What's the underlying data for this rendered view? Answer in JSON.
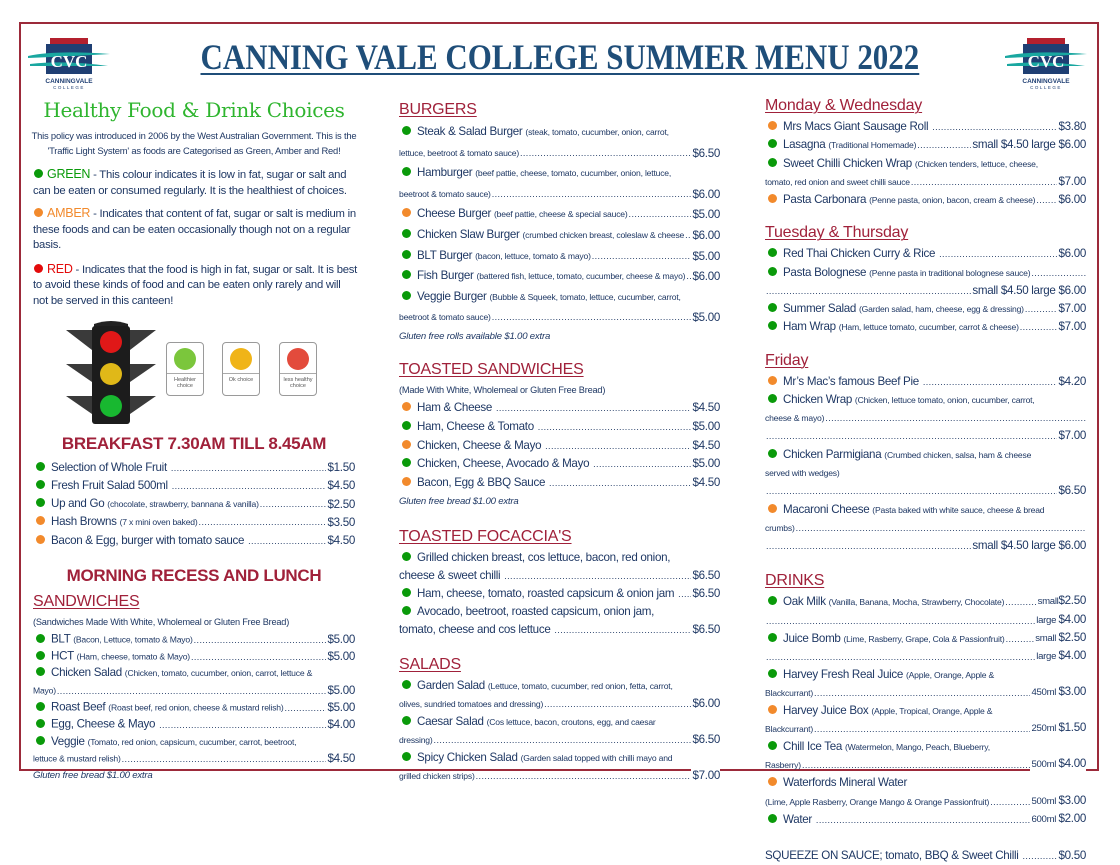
{
  "header": {
    "title": "CANNING VALE COLLEGE SUMMER MENU 2022",
    "logo_text": "CVC",
    "logo_subtext": "CANNINGVALE COLLEGE"
  },
  "colors": {
    "green": "#0a9a0a",
    "amber": "#f28a2c",
    "red": "#e30b0b",
    "heading": "#a0213a",
    "text": "#1f3864",
    "title": "#1f4e79",
    "border": "#9c2a3a"
  },
  "intro": {
    "heading": "Healthy Food & Drink Choices",
    "policy": "This policy was introduced in 2006 by the West Australian Government. This is the 'Traffic Light System' as foods are Categorised as Green, Amber and Red!",
    "legend": {
      "green": {
        "label": "GREEN",
        "text": " - This colour indicates it is low in fat, sugar or salt and can be eaten or consumed regularly. It is the healthiest of choices."
      },
      "amber": {
        "label": "AMBER",
        "text": " - Indicates that content of fat, sugar or salt is medium in these foods and can be eaten occasionally though not on a regular basis."
      },
      "red": {
        "label": "RED",
        "text": " - Indicates that the food is high in fat, sugar or salt. It is best to avoid these kinds of food and can be eaten only rarely and will not be served in this canteen!"
      }
    },
    "cards": [
      {
        "label": "Healthier choice",
        "color": "green"
      },
      {
        "label": "Ok choice",
        "color": "amber"
      },
      {
        "label": "less healthy choice",
        "color": "red"
      }
    ]
  },
  "breakfast_title": "BREAKFAST 7.30AM TILL 8.45AM",
  "recess_title": "MORNING RECESS AND LUNCH",
  "sections": {
    "breakfast": {
      "items": [
        {
          "dot": "green",
          "name": "Selection of Whole Fruit",
          "price": "$1.50"
        },
        {
          "dot": "green",
          "name": "Fresh Fruit Salad 500ml",
          "price": "$4.50"
        },
        {
          "dot": "green",
          "name": "Up and Go",
          "desc": "(chocolate, strawberry, bannana & vanilla)",
          "price": "$2.50"
        },
        {
          "dot": "amber",
          "name": "Hash Browns",
          "desc": "(7 x mini oven baked)",
          "price": "$3.50"
        },
        {
          "dot": "amber",
          "name": "Bacon & Egg, burger with tomato sauce",
          "price": "$4.50"
        }
      ]
    },
    "sandwiches": {
      "title": "SANDWICHES",
      "note": "(Sandwiches Made With White, Wholemeal or Gluten Free Bread)",
      "items": [
        {
          "dot": "green",
          "name": "BLT",
          "desc": "(Bacon, Lettuce, tomato & Mayo)",
          "price": "$5.00"
        },
        {
          "dot": "green",
          "name": "HCT",
          "desc": "(Ham, cheese, tomato & Mayo)",
          "price": "$5.00"
        },
        {
          "dot": "green",
          "name": "Chicken Salad",
          "desc": "(Chicken, tomato, cucumber, onion, carrot, lettuce & Mayo)",
          "price": "$5.00"
        },
        {
          "dot": "green",
          "name": "Roast Beef",
          "desc": "(Roast beef, red onion, cheese & mustard relish)",
          "price": "$5.00"
        },
        {
          "dot": "green",
          "name": "Egg, Cheese & Mayo",
          "price": "$4.00"
        },
        {
          "dot": "green",
          "name": "Veggie",
          "desc": "(Tomato, red onion, capsicum, cucumber, carrot, beetroot, lettuce & mustard relish)",
          "price": "$4.50"
        }
      ],
      "footnote": "Gluten free bread $1.00 extra"
    },
    "burgers": {
      "title": "BURGERS",
      "items": [
        {
          "dot": "green",
          "name": "Steak & Salad Burger",
          "desc": "(steak, tomato, cucumber, onion, carrot, lettuce, beetroot & tomato sauce)",
          "price": "$6.50"
        },
        {
          "dot": "green",
          "name": "Hamburger",
          "desc": "(beef pattie, cheese, tomato, cucumber, onion, lettuce, beetroot & tomato sauce)",
          "price": "$6.00"
        },
        {
          "dot": "amber",
          "name": "Cheese Burger",
          "desc": "(beef pattie, cheese & special sauce)",
          "price": "$5.00"
        },
        {
          "dot": "green",
          "name": "Chicken Slaw Burger",
          "desc": "(crumbed chicken breast, coleslaw & cheese",
          "price": "$6.00"
        },
        {
          "dot": "green",
          "name": "BLT Burger",
          "desc": "(bacon, lettuce, tomato & mayo)",
          "price": "$5.00"
        },
        {
          "dot": "green",
          "name": "Fish Burger",
          "desc": "(battered fish, lettuce, tomato, cucumber, cheese & mayo)",
          "price": "$6.00"
        },
        {
          "dot": "green",
          "name": "Veggie Burger",
          "desc": "(Bubble & Squeek, tomato, lettuce, cucumber, carrot, beetroot & tomato sauce)",
          "price": "$5.00"
        }
      ],
      "footnote": "Gluten free rolls available $1.00 extra"
    },
    "toasted": {
      "title": "TOASTED SANDWICHES",
      "note": "(Made With White, Wholemeal or Gluten Free Bread)",
      "items": [
        {
          "dot": "amber",
          "name": "Ham & Cheese",
          "price": "$4.50"
        },
        {
          "dot": "green",
          "name": "Ham, Cheese & Tomato",
          "price": "$5.00"
        },
        {
          "dot": "amber",
          "name": "Chicken, Cheese & Mayo",
          "price": "$4.50"
        },
        {
          "dot": "green",
          "name": "Chicken, Cheese, Avocado & Mayo",
          "price": "$5.00"
        },
        {
          "dot": "amber",
          "name": "Bacon, Egg & BBQ Sauce",
          "price": "$4.50"
        }
      ],
      "footnote": "Gluten free bread $1.00 extra"
    },
    "focaccia": {
      "title": "TOASTED FOCACCIA'S",
      "items": [
        {
          "dot": "green",
          "name": "Grilled chicken breast, cos lettuce, bacon, red onion, cheese & sweet chilli",
          "price": "$6.50"
        },
        {
          "dot": "green",
          "name": "Ham, cheese, tomato, roasted capsicum & onion jam",
          "price": "$6.50"
        },
        {
          "dot": "green",
          "name": "Avocado, beetroot, roasted capsicum, onion jam, tomato, cheese and cos lettuce",
          "price": "$6.50"
        }
      ]
    },
    "salads": {
      "title": "SALADS",
      "items": [
        {
          "dot": "green",
          "name": "Garden Salad",
          "desc": "(Lettuce, tomato, cucumber, red onion, fetta, carrot, olives, sundried tomatoes and dressing)",
          "price": "$6.00"
        },
        {
          "dot": "green",
          "name": "Caesar Salad",
          "desc": "(Cos lettuce, bacon, croutons, egg, and caesar dressing)",
          "price": "$6.50"
        },
        {
          "dot": "green",
          "name": "Spicy Chicken Salad",
          "desc": "(Garden salad topped with chilli mayo and grilled chicken strips)",
          "price": "$7.00"
        }
      ]
    },
    "monwed": {
      "title": "Monday & Wednesday",
      "items": [
        {
          "dot": "amber",
          "name": "Mrs Macs Giant Sausage Roll",
          "price": "$3.80"
        },
        {
          "dot": "green",
          "name": "Lasagna",
          "desc": "(Traditional Homemade)",
          "price": "small $4.50 large $6.00"
        },
        {
          "dot": "green",
          "name": "Sweet Chilli Chicken Wrap",
          "desc": "(Chicken tenders, lettuce, cheese, tomato, red onion and sweet chilli sauce",
          "price": "$7.00"
        },
        {
          "dot": "amber",
          "name": "Pasta Carbonara",
          "desc": "(Penne pasta, onion, bacon, cream & cheese)",
          "price": "$6.00"
        }
      ]
    },
    "tuethu": {
      "title": "Tuesday & Thursday",
      "items": [
        {
          "dot": "green",
          "name": "Red Thai Chicken Curry & Rice",
          "price": "$6.00"
        },
        {
          "dot": "green",
          "name": "Pasta Bolognese",
          "desc": "(Penne pasta in traditional bolognese sauce)",
          "dots": true
        },
        {
          "price": "small $4.50 large $6.00"
        },
        {
          "dot": "green",
          "name": "Summer Salad",
          "desc": "(Garden salad, ham, cheese, egg & dressing)",
          "price": "$7.00"
        },
        {
          "dot": "green",
          "name": "Ham Wrap",
          "desc": "(Ham, lettuce tomato, cucumber, carrot & cheese)",
          "price": "$7.00"
        }
      ]
    },
    "friday": {
      "title": "Friday",
      "items": [
        {
          "dot": "amber",
          "name": "Mr’s Mac’s famous Beef Pie",
          "price": "$4.20"
        },
        {
          "dot": "green",
          "name": "Chicken Wrap",
          "desc": "(Chicken, lettuce tomato, onion, cucumber, carrot, cheese & mayo)",
          "dots": true
        },
        {
          "price": "$7.00"
        },
        {
          "dot": "green",
          "name": "Chicken Parmigiana",
          "desc": "(Crumbed chicken, salsa, ham & cheese served with wedges)"
        },
        {
          "price": "$6.50"
        },
        {
          "dot": "amber",
          "name": "Macaroni Cheese",
          "desc": "(Pasta baked with white sauce, cheese & bread crumbs)",
          "dots": true
        },
        {
          "price": "small $4.50 large $6.00"
        }
      ]
    },
    "drinks": {
      "title": "DRINKS",
      "items": [
        {
          "dot": "green",
          "name": "Oak Milk",
          "desc": "(Vanilla, Banana, Mocha, Strawberry, Chocolate)",
          "size": "small",
          "price": "$2.50"
        },
        {
          "size": "large ",
          "price": "$4.00"
        },
        {
          "dot": "green",
          "name": "Juice Bomb",
          "desc": "(Lime, Rasberry, Grape, Cola & Passionfruit)",
          "size": "small ",
          "price": "$2.50"
        },
        {
          "size": "large ",
          "price": "$4.00"
        },
        {
          "dot": "green",
          "name": "Harvey Fresh Real Juice",
          "desc": "(Apple, Orange, Apple & Blackcurrant)",
          "size": "450ml ",
          "price": "$3.00"
        },
        {
          "dot": "amber",
          "name": "Harvey Juice Box",
          "desc": "(Apple, Tropical, Orange, Apple & Blackcurrant)",
          "size": "250ml ",
          "price": "$1.50"
        },
        {
          "dot": "green",
          "name": "Chill Ice Tea",
          "desc": "(Watermelon, Mango, Peach, Blueberry, Rasberry)",
          "size": "500ml ",
          "price": "$4.00"
        },
        {
          "dot": "amber",
          "name": "Waterfords Mineral Water"
        },
        {
          "desc": "(Lime, Apple Rasberry, Orange Mango & Orange Passionfruit)",
          "size": "500ml ",
          "price": "$3.00"
        },
        {
          "dot": "green",
          "name": "Water",
          "size": "600ml ",
          "price": "$2.00"
        }
      ]
    },
    "sauce": {
      "items": [
        {
          "name": "SQUEEZE ON SAUCE; tomato, BBQ & Sweet Chilli",
          "price": "$0.50"
        }
      ]
    }
  }
}
